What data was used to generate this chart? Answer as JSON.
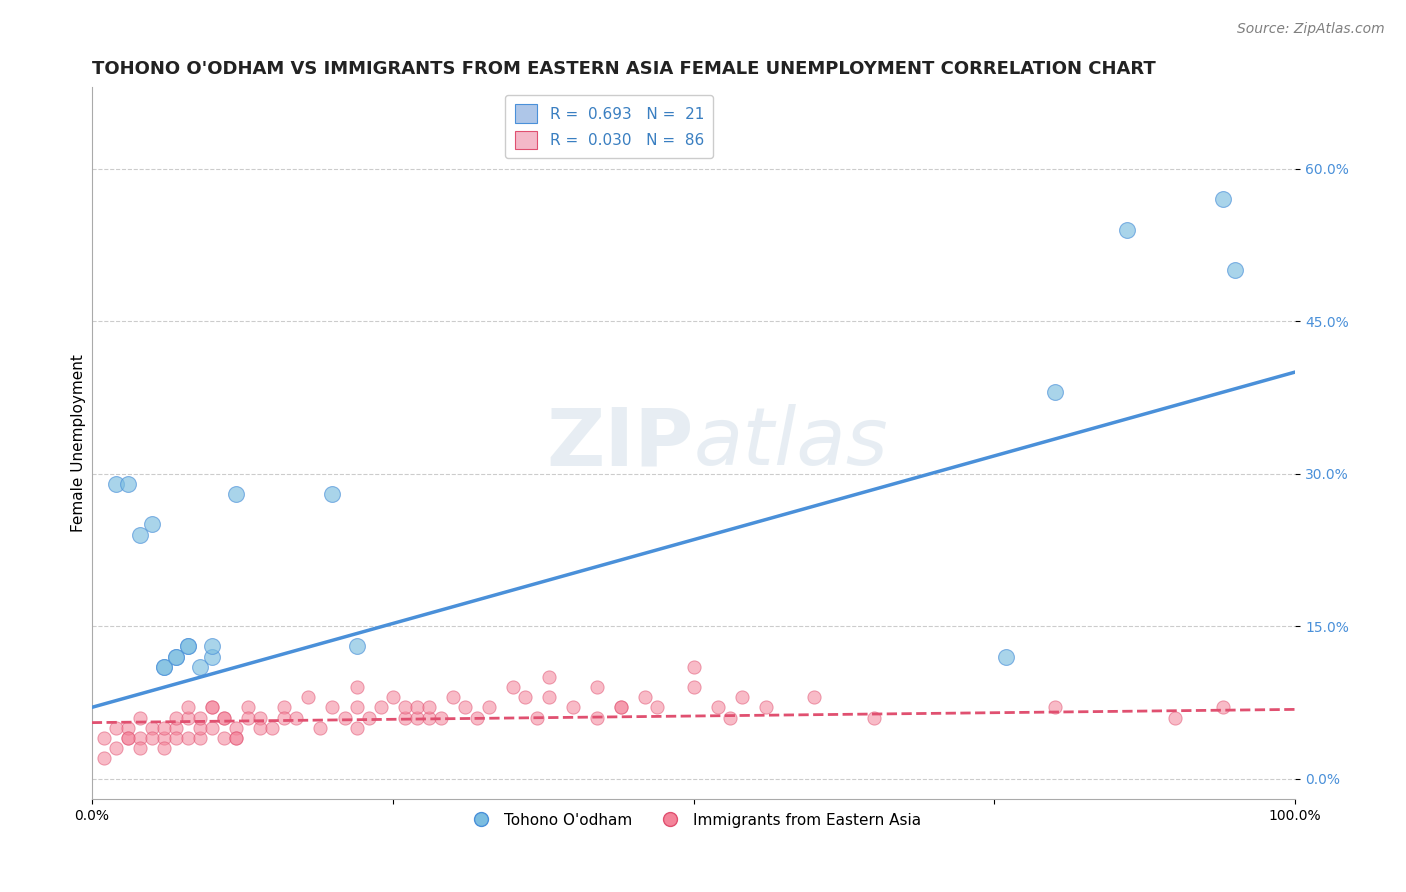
{
  "title": "TOHONO O'ODHAM VS IMMIGRANTS FROM EASTERN ASIA FEMALE UNEMPLOYMENT CORRELATION CHART",
  "source": "Source: ZipAtlas.com",
  "ylabel": "Female Unemployment",
  "background_color": "#ffffff",
  "watermark_zip": "ZIP",
  "watermark_atlas": "atlas",
  "xlim": [
    0.0,
    1.0
  ],
  "ylim": [
    -0.02,
    0.68
  ],
  "yticks": [
    0.0,
    0.15,
    0.3,
    0.45,
    0.6
  ],
  "yticklabels": [
    "0.0%",
    "15.0%",
    "30.0%",
    "45.0%",
    "60.0%"
  ],
  "xticks": [
    0.0,
    0.25,
    0.5,
    0.75,
    1.0
  ],
  "xticklabels": [
    "0.0%",
    "",
    "",
    "",
    "100.0%"
  ],
  "legend_color1": "#aec6e8",
  "legend_color2": "#f4b8c8",
  "series1_color": "#7bbde0",
  "series2_color": "#f4849a",
  "line1_color": "#4a90d9",
  "line2_color": "#e05070",
  "grid_color": "#cccccc",
  "blue_scatter_x": [
    0.02,
    0.03,
    0.04,
    0.05,
    0.06,
    0.06,
    0.07,
    0.07,
    0.08,
    0.08,
    0.09,
    0.1,
    0.1,
    0.12,
    0.2,
    0.22,
    0.76,
    0.8,
    0.86,
    0.94,
    0.95
  ],
  "blue_scatter_y": [
    0.29,
    0.29,
    0.24,
    0.25,
    0.11,
    0.11,
    0.12,
    0.12,
    0.13,
    0.13,
    0.11,
    0.12,
    0.13,
    0.28,
    0.28,
    0.13,
    0.12,
    0.38,
    0.54,
    0.57,
    0.5
  ],
  "pink_scatter_x": [
    0.01,
    0.01,
    0.02,
    0.02,
    0.03,
    0.03,
    0.03,
    0.04,
    0.04,
    0.04,
    0.05,
    0.05,
    0.06,
    0.06,
    0.06,
    0.07,
    0.07,
    0.07,
    0.08,
    0.08,
    0.09,
    0.09,
    0.1,
    0.1,
    0.11,
    0.11,
    0.12,
    0.12,
    0.13,
    0.13,
    0.14,
    0.14,
    0.15,
    0.16,
    0.16,
    0.17,
    0.18,
    0.19,
    0.2,
    0.21,
    0.22,
    0.22,
    0.23,
    0.24,
    0.25,
    0.26,
    0.26,
    0.27,
    0.27,
    0.28,
    0.28,
    0.29,
    0.3,
    0.31,
    0.32,
    0.33,
    0.35,
    0.36,
    0.37,
    0.38,
    0.4,
    0.42,
    0.44,
    0.46,
    0.47,
    0.5,
    0.52,
    0.53,
    0.54,
    0.56,
    0.6,
    0.65,
    0.8,
    0.9,
    0.94,
    0.5,
    0.38,
    0.42,
    0.44,
    0.08,
    0.09,
    0.1,
    0.11,
    0.12,
    0.22
  ],
  "pink_scatter_y": [
    0.04,
    0.02,
    0.05,
    0.03,
    0.04,
    0.05,
    0.04,
    0.04,
    0.03,
    0.06,
    0.05,
    0.04,
    0.04,
    0.03,
    0.05,
    0.05,
    0.04,
    0.06,
    0.06,
    0.04,
    0.04,
    0.05,
    0.05,
    0.07,
    0.06,
    0.04,
    0.05,
    0.04,
    0.07,
    0.06,
    0.06,
    0.05,
    0.05,
    0.07,
    0.06,
    0.06,
    0.08,
    0.05,
    0.07,
    0.06,
    0.07,
    0.05,
    0.06,
    0.07,
    0.08,
    0.06,
    0.07,
    0.06,
    0.07,
    0.06,
    0.07,
    0.06,
    0.08,
    0.07,
    0.06,
    0.07,
    0.09,
    0.08,
    0.06,
    0.1,
    0.07,
    0.06,
    0.07,
    0.08,
    0.07,
    0.09,
    0.07,
    0.06,
    0.08,
    0.07,
    0.08,
    0.06,
    0.07,
    0.06,
    0.07,
    0.11,
    0.08,
    0.09,
    0.07,
    0.07,
    0.06,
    0.07,
    0.06,
    0.04,
    0.09
  ],
  "blue_line_x": [
    0.0,
    1.0
  ],
  "blue_line_y": [
    0.07,
    0.4
  ],
  "pink_line_x": [
    0.0,
    1.0
  ],
  "pink_line_y": [
    0.055,
    0.068
  ],
  "title_fontsize": 13,
  "source_fontsize": 10,
  "label_fontsize": 11,
  "tick_fontsize": 10,
  "legend_fontsize": 11
}
